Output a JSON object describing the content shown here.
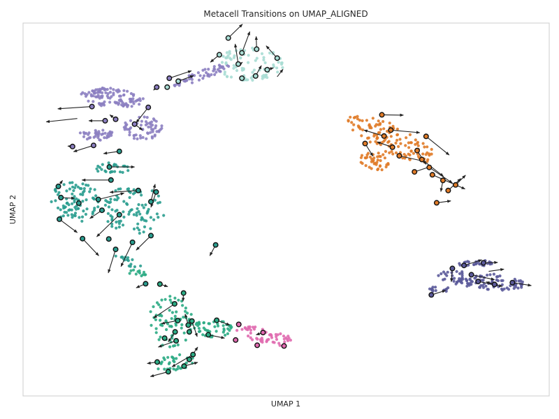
{
  "chart_data": {
    "type": "scatter",
    "title": "Metacell Transitions on UMAP_ALIGNED",
    "xlabel": "UMAP 1",
    "ylabel": "UMAP 2",
    "xlim": [
      0,
      100
    ],
    "ylim": [
      0,
      100
    ],
    "grid": false,
    "legend": "none",
    "series": [
      {
        "color": "#8c7fc1",
        "clusters": [
          {
            "cx": 17,
            "cy": 80,
            "rx": 6,
            "ry": 2.6,
            "angle": -8,
            "n": 110
          },
          {
            "cx": 23,
            "cy": 72,
            "rx": 4,
            "ry": 3.2,
            "angle": 10,
            "n": 60
          },
          {
            "cx": 14,
            "cy": 70,
            "rx": 3.5,
            "ry": 1.5,
            "angle": 0,
            "n": 40
          },
          {
            "cx": 34,
            "cy": 86,
            "rx": 6,
            "ry": 1.2,
            "angle": 28,
            "n": 55
          }
        ],
        "metacells": [
          {
            "x": 13.1,
            "y": 77.6
          },
          {
            "x": 15.6,
            "y": 73.8
          },
          {
            "x": 17.6,
            "y": 74.2
          },
          {
            "x": 23.8,
            "y": 77.4
          },
          {
            "x": 21.2,
            "y": 72.9
          },
          {
            "x": 13.4,
            "y": 67.2
          },
          {
            "x": 9.4,
            "y": 66.9
          },
          {
            "x": 25.4,
            "y": 82.8
          },
          {
            "x": 27.8,
            "y": 85.2
          }
        ],
        "arrows": [
          {
            "x1": 13.1,
            "y1": 77.6,
            "x2": 6.6,
            "y2": 77.0
          },
          {
            "x1": 10.3,
            "y1": 74.4,
            "x2": 4.4,
            "y2": 73.5
          },
          {
            "x1": 15.6,
            "y1": 73.8,
            "x2": 12.5,
            "y2": 73.8
          },
          {
            "x1": 17.6,
            "y1": 74.2,
            "x2": 16.5,
            "y2": 75.4
          },
          {
            "x1": 23.8,
            "y1": 77.4,
            "x2": 21.5,
            "y2": 73.3
          },
          {
            "x1": 21.2,
            "y1": 72.9,
            "x2": 22.7,
            "y2": 71.3
          },
          {
            "x1": 13.4,
            "y1": 67.2,
            "x2": 9.6,
            "y2": 65.5
          },
          {
            "x1": 9.4,
            "y1": 66.9,
            "x2": 8.5,
            "y2": 67.0
          },
          {
            "x1": 27.8,
            "y1": 85.2,
            "x2": 32.0,
            "y2": 87.2
          },
          {
            "x1": 25.4,
            "y1": 82.8,
            "x2": 24.8,
            "y2": 82.0
          }
        ]
      },
      {
        "color": "#a9ddd4",
        "clusters": [
          {
            "cx": 43,
            "cy": 89,
            "rx": 6.5,
            "ry": 4.5,
            "angle": 0,
            "n": 85
          }
        ],
        "metacells": [
          {
            "x": 37.3,
            "y": 91.5
          },
          {
            "x": 39.0,
            "y": 96.0
          },
          {
            "x": 41.6,
            "y": 92.0
          },
          {
            "x": 44.4,
            "y": 93.0
          },
          {
            "x": 40.9,
            "y": 89.0
          },
          {
            "x": 41.6,
            "y": 85.2
          },
          {
            "x": 44.2,
            "y": 85.8
          },
          {
            "x": 46.4,
            "y": 87.5
          },
          {
            "x": 48.3,
            "y": 90.6
          },
          {
            "x": 27.4,
            "y": 82.8
          },
          {
            "x": 29.5,
            "y": 84.4
          }
        ],
        "arrows": [
          {
            "x1": 39.0,
            "y1": 96.0,
            "x2": 41.7,
            "y2": 99.7
          },
          {
            "x1": 40.9,
            "y1": 89.0,
            "x2": 40.3,
            "y2": 94.4
          },
          {
            "x1": 41.6,
            "y1": 92.0,
            "x2": 43.1,
            "y2": 97.7
          },
          {
            "x1": 44.2,
            "y1": 85.8,
            "x2": 45.3,
            "y2": 88.6
          },
          {
            "x1": 48.3,
            "y1": 90.6,
            "x2": 46.2,
            "y2": 93.9
          },
          {
            "x1": 37.3,
            "y1": 91.5,
            "x2": 35.6,
            "y2": 89.5
          },
          {
            "x1": 44.4,
            "y1": 93.0,
            "x2": 44.3,
            "y2": 96.4
          },
          {
            "x1": 46.4,
            "y1": 87.5,
            "x2": 47.6,
            "y2": 88.0
          },
          {
            "x1": 29.5,
            "y1": 84.4,
            "x2": 32.4,
            "y2": 85.9
          },
          {
            "x1": 48.3,
            "y1": 85.6,
            "x2": 49.4,
            "y2": 87.6
          },
          {
            "x1": 41.0,
            "y1": 88.7,
            "x2": 41.7,
            "y2": 89.5
          }
        ]
      },
      {
        "color": "#2a9d8f",
        "clusters": [
          {
            "cx": 10,
            "cy": 52,
            "rx": 5,
            "ry": 5.5,
            "angle": 0,
            "n": 90
          },
          {
            "cx": 21,
            "cy": 50,
            "rx": 6,
            "ry": 6.5,
            "angle": 0,
            "n": 90
          },
          {
            "cx": 17,
            "cy": 61,
            "rx": 3.2,
            "ry": 1.6,
            "angle": 0,
            "n": 25
          },
          {
            "cx": 20,
            "cy": 36,
            "rx": 3,
            "ry": 0.9,
            "angle": -35,
            "n": 15
          }
        ],
        "metacells": [
          {
            "x": 16.7,
            "y": 57.9
          },
          {
            "x": 14.3,
            "y": 52.7
          },
          {
            "x": 10.6,
            "y": 51.7
          },
          {
            "x": 6.7,
            "y": 56.2
          },
          {
            "x": 7.2,
            "y": 53.2
          },
          {
            "x": 6.9,
            "y": 47.4
          },
          {
            "x": 11.3,
            "y": 42.2
          },
          {
            "x": 18.3,
            "y": 48.6
          },
          {
            "x": 15.0,
            "y": 49.8
          },
          {
            "x": 21.9,
            "y": 55.1
          },
          {
            "x": 24.3,
            "y": 52.1
          },
          {
            "x": 25.3,
            "y": 54.7
          },
          {
            "x": 24.3,
            "y": 43.0
          },
          {
            "x": 16.3,
            "y": 42.1
          },
          {
            "x": 20.8,
            "y": 41.2
          },
          {
            "x": 17.6,
            "y": 39.3
          },
          {
            "x": 18.3,
            "y": 65.6
          },
          {
            "x": 16.4,
            "y": 61.4
          },
          {
            "x": 36.6,
            "y": 40.5
          },
          {
            "x": 23.3,
            "y": 30.1
          }
        ],
        "arrows": [
          {
            "x1": 16.7,
            "y1": 57.9,
            "x2": 11.2,
            "y2": 57.9
          },
          {
            "x1": 14.3,
            "y1": 52.7,
            "x2": 19.2,
            "y2": 54.4
          },
          {
            "x1": 6.9,
            "y1": 47.4,
            "x2": 10.3,
            "y2": 43.8
          },
          {
            "x1": 11.3,
            "y1": 42.2,
            "x2": 14.4,
            "y2": 37.6
          },
          {
            "x1": 18.3,
            "y1": 48.6,
            "x2": 14.0,
            "y2": 42.7
          },
          {
            "x1": 15.0,
            "y1": 49.8,
            "x2": 12.7,
            "y2": 47.6
          },
          {
            "x1": 21.9,
            "y1": 55.1,
            "x2": 16.5,
            "y2": 54.6
          },
          {
            "x1": 24.3,
            "y1": 52.1,
            "x2": 25.1,
            "y2": 56.8
          },
          {
            "x1": 25.3,
            "y1": 54.7,
            "x2": 24.3,
            "y2": 50.6
          },
          {
            "x1": 24.3,
            "y1": 43.0,
            "x2": 21.5,
            "y2": 39.1
          },
          {
            "x1": 20.8,
            "y1": 41.2,
            "x2": 18.6,
            "y2": 34.7
          },
          {
            "x1": 17.6,
            "y1": 39.3,
            "x2": 16.2,
            "y2": 33.0
          },
          {
            "x1": 6.7,
            "y1": 56.2,
            "x2": 7.5,
            "y2": 57.8
          },
          {
            "x1": 7.2,
            "y1": 53.2,
            "x2": 9.8,
            "y2": 53.0
          },
          {
            "x1": 18.3,
            "y1": 65.6,
            "x2": 15.3,
            "y2": 65.0
          },
          {
            "x1": 16.4,
            "y1": 61.4,
            "x2": 21.2,
            "y2": 61.4
          },
          {
            "x1": 23.3,
            "y1": 30.1,
            "x2": 21.5,
            "y2": 29.0
          },
          {
            "x1": 36.6,
            "y1": 40.5,
            "x2": 35.5,
            "y2": 37.6
          }
        ]
      },
      {
        "color": "#2bab84",
        "clusters": [
          {
            "cx": 28,
            "cy": 20,
            "rx": 4.5,
            "ry": 7,
            "angle": 0,
            "n": 80
          },
          {
            "cx": 36,
            "cy": 18,
            "rx": 4.2,
            "ry": 2.2,
            "angle": 0,
            "n": 45
          },
          {
            "cx": 29,
            "cy": 9,
            "rx": 4,
            "ry": 2,
            "angle": 15,
            "n": 35
          },
          {
            "cx": 22,
            "cy": 33,
            "rx": 2.5,
            "ry": 0.8,
            "angle": -10,
            "n": 12
          }
        ],
        "metacells": [
          {
            "x": 28.8,
            "y": 24.7
          },
          {
            "x": 29.4,
            "y": 20.2
          },
          {
            "x": 32.1,
            "y": 20.1
          },
          {
            "x": 28.9,
            "y": 17.2
          },
          {
            "x": 31.4,
            "y": 19.0
          },
          {
            "x": 29.1,
            "y": 14.8
          },
          {
            "x": 26.9,
            "y": 15.5
          },
          {
            "x": 31.6,
            "y": 17.2
          },
          {
            "x": 36.8,
            "y": 20.3
          },
          {
            "x": 35.2,
            "y": 16.4
          },
          {
            "x": 30.5,
            "y": 27.6
          },
          {
            "x": 25.5,
            "y": 9.1
          },
          {
            "x": 30.6,
            "y": 8.0
          },
          {
            "x": 31.6,
            "y": 9.8
          },
          {
            "x": 32.3,
            "y": 11.1
          },
          {
            "x": 27.6,
            "y": 6.5
          },
          {
            "x": 26.0,
            "y": 30.0
          }
        ],
        "arrows": [
          {
            "x1": 28.8,
            "y1": 24.7,
            "x2": 24.8,
            "y2": 20.9
          },
          {
            "x1": 29.4,
            "y1": 20.2,
            "x2": 26.3,
            "y2": 19.4
          },
          {
            "x1": 31.4,
            "y1": 19.0,
            "x2": 30.8,
            "y2": 22.0
          },
          {
            "x1": 32.1,
            "y1": 20.1,
            "x2": 33.1,
            "y2": 15.9
          },
          {
            "x1": 28.9,
            "y1": 17.2,
            "x2": 27.6,
            "y2": 14.5
          },
          {
            "x1": 29.1,
            "y1": 14.8,
            "x2": 25.7,
            "y2": 13.1
          },
          {
            "x1": 36.8,
            "y1": 20.3,
            "x2": 39.3,
            "y2": 19.0
          },
          {
            "x1": 35.2,
            "y1": 16.4,
            "x2": 38.3,
            "y2": 15.5
          },
          {
            "x1": 30.5,
            "y1": 27.6,
            "x2": 30.4,
            "y2": 25.4
          },
          {
            "x1": 25.5,
            "y1": 9.1,
            "x2": 23.6,
            "y2": 8.7
          },
          {
            "x1": 30.6,
            "y1": 8.0,
            "x2": 33.2,
            "y2": 9.0
          },
          {
            "x1": 31.6,
            "y1": 9.8,
            "x2": 33.2,
            "y2": 13.1
          },
          {
            "x1": 32.3,
            "y1": 11.1,
            "x2": 28.3,
            "y2": 7.8
          },
          {
            "x1": 27.6,
            "y1": 6.5,
            "x2": 24.2,
            "y2": 5.2
          },
          {
            "x1": 26.0,
            "y1": 30.0,
            "x2": 27.5,
            "y2": 29.3
          }
        ]
      },
      {
        "color": "#e06aaf",
        "clusters": [
          {
            "cx": 45.5,
            "cy": 16,
            "rx": 5.5,
            "ry": 2.4,
            "angle": -12,
            "n": 55
          }
        ],
        "metacells": [
          {
            "x": 41.0,
            "y": 19.2
          },
          {
            "x": 45.6,
            "y": 17.0
          },
          {
            "x": 40.4,
            "y": 15.0
          },
          {
            "x": 44.5,
            "y": 13.6
          },
          {
            "x": 49.6,
            "y": 13.4
          }
        ],
        "arrows": [
          {
            "x1": 45.6,
            "y1": 17.0,
            "x2": 44.3,
            "y2": 16.4
          }
        ]
      },
      {
        "color": "#e07b28",
        "clusters": [
          {
            "cx": 70,
            "cy": 69,
            "rx": 10,
            "ry": 3.5,
            "angle": -35,
            "n": 130
          },
          {
            "cx": 67,
            "cy": 63,
            "rx": 3.5,
            "ry": 2.2,
            "angle": -25,
            "n": 40
          }
        ],
        "metacells": [
          {
            "x": 68.2,
            "y": 75.4
          },
          {
            "x": 68.6,
            "y": 69.7
          },
          {
            "x": 70.2,
            "y": 66.7
          },
          {
            "x": 71.5,
            "y": 64.4
          },
          {
            "x": 74.4,
            "y": 60.1
          },
          {
            "x": 74.9,
            "y": 65.8
          },
          {
            "x": 75.8,
            "y": 63.4
          },
          {
            "x": 77.2,
            "y": 61.3
          },
          {
            "x": 77.8,
            "y": 59.3
          },
          {
            "x": 79.8,
            "y": 57.8
          },
          {
            "x": 80.8,
            "y": 55.1
          },
          {
            "x": 82.2,
            "y": 56.6
          },
          {
            "x": 78.6,
            "y": 51.8
          },
          {
            "x": 65.0,
            "y": 67.7
          },
          {
            "x": 69.9,
            "y": 71.3
          },
          {
            "x": 76.6,
            "y": 69.6
          }
        ],
        "arrows": [
          {
            "x1": 68.2,
            "y1": 75.4,
            "x2": 72.3,
            "y2": 75.3
          },
          {
            "x1": 68.6,
            "y1": 69.7,
            "x2": 64.8,
            "y2": 71.3
          },
          {
            "x1": 70.2,
            "y1": 66.7,
            "x2": 67.3,
            "y2": 68.1
          },
          {
            "x1": 71.5,
            "y1": 64.4,
            "x2": 76.3,
            "y2": 62.9
          },
          {
            "x1": 74.4,
            "y1": 60.1,
            "x2": 77.6,
            "y2": 61.6
          },
          {
            "x1": 74.9,
            "y1": 65.8,
            "x2": 76.6,
            "y2": 62.1
          },
          {
            "x1": 75.8,
            "y1": 63.4,
            "x2": 79.9,
            "y2": 58.9
          },
          {
            "x1": 77.2,
            "y1": 61.3,
            "x2": 81.6,
            "y2": 57.1
          },
          {
            "x1": 77.8,
            "y1": 59.3,
            "x2": 84.0,
            "y2": 55.5
          },
          {
            "x1": 79.8,
            "y1": 57.8,
            "x2": 79.4,
            "y2": 54.8
          },
          {
            "x1": 80.8,
            "y1": 55.1,
            "x2": 83.2,
            "y2": 58.3
          },
          {
            "x1": 82.2,
            "y1": 56.6,
            "x2": 84.1,
            "y2": 59.2
          },
          {
            "x1": 78.6,
            "y1": 51.8,
            "x2": 81.3,
            "y2": 52.3
          },
          {
            "x1": 65.0,
            "y1": 67.7,
            "x2": 66.5,
            "y2": 64.3
          },
          {
            "x1": 69.9,
            "y1": 71.3,
            "x2": 75.4,
            "y2": 70.6
          },
          {
            "x1": 76.6,
            "y1": 69.6,
            "x2": 81.0,
            "y2": 64.6
          }
        ]
      },
      {
        "color": "#5b5a9a",
        "clusters": [
          {
            "cx": 87,
            "cy": 31,
            "rx": 9,
            "ry": 2.2,
            "angle": -10,
            "n": 110
          },
          {
            "cx": 86,
            "cy": 35.5,
            "rx": 3.5,
            "ry": 0.8,
            "angle": 5,
            "n": 30
          },
          {
            "cx": 79,
            "cy": 28.5,
            "rx": 2.5,
            "ry": 0.8,
            "angle": 0,
            "n": 15
          }
        ],
        "metacells": [
          {
            "x": 81.6,
            "y": 34.2
          },
          {
            "x": 83.8,
            "y": 35.0
          },
          {
            "x": 85.2,
            "y": 32.5
          },
          {
            "x": 86.5,
            "y": 30.7
          },
          {
            "x": 89.6,
            "y": 29.9
          },
          {
            "x": 93.0,
            "y": 30.4
          },
          {
            "x": 77.6,
            "y": 27.1
          },
          {
            "x": 87.5,
            "y": 35.7
          }
        ],
        "arrows": [
          {
            "x1": 81.6,
            "y1": 34.2,
            "x2": 81.4,
            "y2": 30.6
          },
          {
            "x1": 83.8,
            "y1": 35.0,
            "x2": 87.2,
            "y2": 36.5
          },
          {
            "x1": 85.2,
            "y1": 32.5,
            "x2": 89.6,
            "y2": 31.2
          },
          {
            "x1": 86.5,
            "y1": 30.7,
            "x2": 91.1,
            "y2": 29.4
          },
          {
            "x1": 89.6,
            "y1": 29.9,
            "x2": 88.0,
            "y2": 30.6
          },
          {
            "x1": 93.0,
            "y1": 30.4,
            "x2": 96.6,
            "y2": 29.6
          },
          {
            "x1": 77.6,
            "y1": 27.1,
            "x2": 80.3,
            "y2": 28.3
          },
          {
            "x1": 87.5,
            "y1": 35.7,
            "x2": 90.2,
            "y2": 35.8
          },
          {
            "x1": 88.5,
            "y1": 33.4,
            "x2": 91.4,
            "y2": 34.0
          }
        ]
      }
    ]
  }
}
